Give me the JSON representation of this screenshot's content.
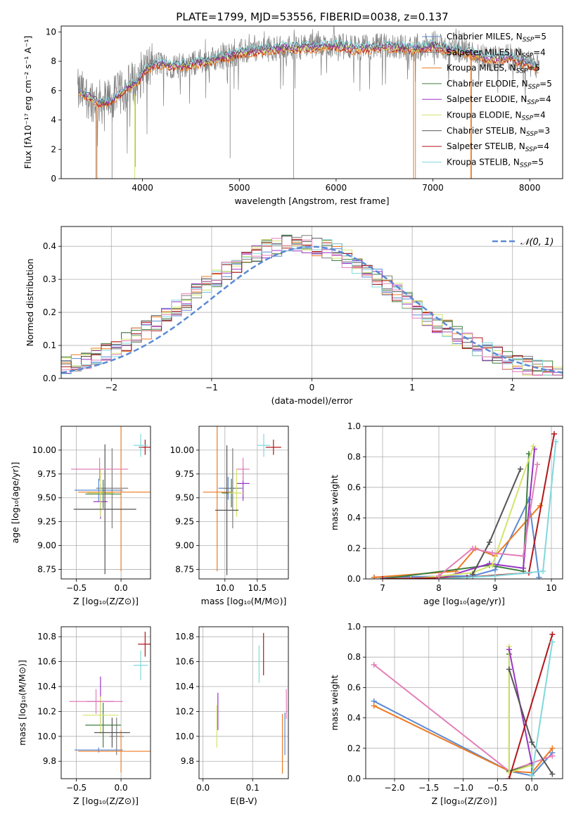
{
  "figure": {
    "title": "PLATE=1799, MJD=53556, FIBERID=0038, z=0.137"
  },
  "colors": {
    "Chabrier MILES": "#5b8ad3",
    "Salpeter MILES": "#7f7f7f",
    "Kroupa MILES": "#ee7b22",
    "Chabrier ELODIE": "#3f7f3f",
    "Salpeter ELODIE": "#9a35c4",
    "Kroupa ELODIE": "#d4e36b",
    "Chabrier STELIB": "#555555",
    "Salpeter STELIB": "#b3161c",
    "Kroupa STELIB": "#80d8dc",
    "Chabrier MILES (ages)": "#e37fb8",
    "data": "#808080"
  },
  "chart_data": [
    {
      "id": "spectrum",
      "type": "line",
      "xlabel": "wavelength [Angstrom, rest frame]",
      "ylabel": "Flux [fλ10⁻¹⁷ erg cm⁻² s⁻¹ A⁻¹]",
      "xlim": [
        3160,
        8340
      ],
      "ylim": [
        0,
        10.4
      ],
      "xticks": [
        4000,
        5000,
        6000,
        7000,
        8000
      ],
      "yticks": [
        0,
        2,
        4,
        6,
        8,
        10
      ],
      "legend_position": "right",
      "legend": [
        {
          "label": "Chabrier MILES, N",
          "sub": "SSP",
          "tail": "=5",
          "color": "#5b8ad3"
        },
        {
          "label": "Salpeter MILES, N",
          "sub": "SSP",
          "tail": "=4",
          "color": "#7f7f7f"
        },
        {
          "label": "Kroupa MILES, N",
          "sub": "SSP",
          "tail": "=5",
          "color": "#ee7b22"
        },
        {
          "label": "Chabrier ELODIE, N",
          "sub": "SSP",
          "tail": "=5",
          "color": "#3f7f3f"
        },
        {
          "label": "Salpeter ELODIE, N",
          "sub": "SSP",
          "tail": "=4",
          "color": "#9a35c4"
        },
        {
          "label": "Kroupa ELODIE, N",
          "sub": "SSP",
          "tail": "=4",
          "color": "#d4e36b"
        },
        {
          "label": "Chabrier STELIB, N",
          "sub": "SSP",
          "tail": "=3",
          "color": "#555555"
        },
        {
          "label": "Salpeter STELIB, N",
          "sub": "SSP",
          "tail": "=4",
          "color": "#b3161c"
        },
        {
          "label": "Kroupa STELIB, N",
          "sub": "SSP",
          "tail": "=5",
          "color": "#80d8dc"
        }
      ],
      "continuum": {
        "x": [
          3350,
          3450,
          3550,
          3650,
          3700,
          3800,
          3900,
          3950,
          4000,
          4100,
          4200,
          4300,
          4500,
          4700,
          4900,
          5000,
          5200,
          5400,
          5600,
          5800,
          6000,
          6200,
          6400,
          6600,
          6800,
          7000,
          7200,
          7400,
          7600,
          7800,
          8000,
          8100
        ],
        "y": [
          5.9,
          5.6,
          5.2,
          5.3,
          5.4,
          6.0,
          6.5,
          6.6,
          7.3,
          7.7,
          7.9,
          7.7,
          7.8,
          8.1,
          8.4,
          8.6,
          8.8,
          8.9,
          9.0,
          9.05,
          9.1,
          8.9,
          9.0,
          9.05,
          8.85,
          9.1,
          8.8,
          8.6,
          8.2,
          8.3,
          7.8,
          7.6
        ]
      },
      "absorption_lines": [
        {
          "x": 3530,
          "y": 0.0
        },
        {
          "x": 3685,
          "y": 0.0
        },
        {
          "x": 3925,
          "y": 0.8
        },
        {
          "x": 4905,
          "y": 1.4
        },
        {
          "x": 5560,
          "y": 0.0
        },
        {
          "x": 6820,
          "y": 0.0
        },
        {
          "x": 7400,
          "y": 0.0
        }
      ]
    },
    {
      "id": "residuals",
      "type": "histogram",
      "xlabel": "(data-model)/error",
      "ylabel": "Normed distribution",
      "xlim": [
        -2.5,
        2.5
      ],
      "ylim": [
        0,
        0.46
      ],
      "xticks": [
        -2,
        -1,
        0,
        1,
        2
      ],
      "yticks": [
        0.0,
        0.1,
        0.2,
        0.3,
        0.4
      ],
      "legend_position": "top-right",
      "legend": [
        {
          "label": "𝒩(0, 1)",
          "color": "#5b8ad3",
          "style": "dashed"
        }
      ],
      "bin_width": 0.1,
      "reference_curve": "normal pdf, mean 0, sigma 1"
    },
    {
      "id": "age_vs_Z",
      "type": "errorbar",
      "xlabel": "Z [log₁₀(Z/Z⊙)]",
      "ylabel": "age  [log₁₀(age/yr)]",
      "xlim": [
        -0.67,
        0.33
      ],
      "ylim": [
        8.65,
        10.25
      ],
      "xticks": [
        -0.5,
        0.0
      ],
      "yticks": [
        8.75,
        9.0,
        9.25,
        9.5,
        9.75,
        10.0
      ],
      "points": [
        {
          "model": "Chabrier MILES",
          "x": -0.25,
          "xerr": 0.27,
          "y": 9.58,
          "yerr": 0.12
        },
        {
          "model": "Salpeter MILES",
          "x": -0.1,
          "xerr": 0.18,
          "y": 9.6,
          "yerr": 0.42
        },
        {
          "model": "Kroupa MILES",
          "x": 0.0,
          "xerr": 0.48,
          "y": 9.56,
          "yerr": 0.83
        },
        {
          "model": "Chabrier ELODIE",
          "x": -0.2,
          "xerr": 0.2,
          "y": 9.54,
          "yerr": 0.15
        },
        {
          "model": "Salpeter ELODIE",
          "x": -0.23,
          "xerr": 0.08,
          "y": 9.46,
          "yerr": 0.18
        },
        {
          "model": "Kroupa ELODIE",
          "x": -0.23,
          "xerr": 0.15,
          "y": 9.55,
          "yerr": 0.25
        },
        {
          "model": "Chabrier STELIB",
          "x": -0.18,
          "xerr": 0.35,
          "y": 9.38,
          "yerr": 0.68
        },
        {
          "model": "Salpeter STELIB",
          "x": 0.27,
          "xerr": 0.07,
          "y": 10.03,
          "yerr": 0.08
        },
        {
          "model": "Kroupa STELIB",
          "x": 0.22,
          "xerr": 0.08,
          "y": 10.05,
          "yerr": 0.12
        },
        {
          "model": "Chabrier MILES (ages)",
          "x": -0.24,
          "xerr": 0.32,
          "y": 9.8,
          "yerr": 0.12
        }
      ]
    },
    {
      "id": "age_vs_mass",
      "type": "errorbar",
      "xlabel": "mass [log₁₀(M/M⊙)]",
      "ylabel": "",
      "xlim": [
        9.6,
        10.98
      ],
      "ylim": [
        8.65,
        10.25
      ],
      "xticks": [
        10.0,
        10.5
      ],
      "yticks": [
        8.75,
        9.0,
        9.25,
        9.5,
        9.75,
        10.0
      ],
      "points": [
        {
          "model": "Chabrier MILES",
          "x": 10.05,
          "xerr": 0.15,
          "y": 9.6,
          "yerr": 0.12
        },
        {
          "model": "Salpeter MILES",
          "x": 10.12,
          "xerr": 0.15,
          "y": 9.6,
          "yerr": 0.42
        },
        {
          "model": "Kroupa MILES",
          "x": 9.88,
          "xerr": 0.22,
          "y": 9.56,
          "yerr": 0.83
        },
        {
          "model": "Chabrier ELODIE",
          "x": 10.1,
          "xerr": 0.15,
          "y": 9.55,
          "yerr": 0.15
        },
        {
          "model": "Salpeter ELODIE",
          "x": 10.28,
          "xerr": 0.1,
          "y": 9.65,
          "yerr": 0.18
        },
        {
          "model": "Kroupa ELODIE",
          "x": 10.18,
          "xerr": 0.12,
          "y": 9.55,
          "yerr": 0.25
        },
        {
          "model": "Chabrier STELIB",
          "x": 10.03,
          "xerr": 0.18,
          "y": 9.37,
          "yerr": 0.68
        },
        {
          "model": "Salpeter STELIB",
          "x": 10.75,
          "xerr": 0.12,
          "y": 10.03,
          "yerr": 0.08
        },
        {
          "model": "Kroupa STELIB",
          "x": 10.6,
          "xerr": 0.1,
          "y": 10.05,
          "yerr": 0.12
        },
        {
          "model": "Chabrier MILES (ages)",
          "x": 10.28,
          "xerr": 0.1,
          "y": 9.8,
          "yerr": 0.12
        }
      ]
    },
    {
      "id": "weight_vs_age",
      "type": "line",
      "xlabel": "age  [log₁₀(age/yr)]",
      "ylabel": "mass weight",
      "xlim": [
        6.7,
        10.2
      ],
      "ylim": [
        0.0,
        1.0
      ],
      "xticks": [
        7,
        8,
        9,
        10
      ],
      "yticks": [
        0.0,
        0.2,
        0.4,
        0.6,
        0.8,
        1.0
      ],
      "series": [
        {
          "model": "Chabrier MILES",
          "x": [
            6.85,
            8.6,
            9.0,
            9.6,
            9.78
          ],
          "y": [
            0.01,
            0.02,
            0.06,
            0.52,
            0.01
          ]
        },
        {
          "model": "Kroupa MILES",
          "x": [
            6.85,
            8.3,
            8.65,
            9.0,
            9.8
          ],
          "y": [
            0.01,
            0.05,
            0.2,
            0.15,
            0.48
          ]
        },
        {
          "model": "Chabrier ELODIE",
          "x": [
            7.0,
            8.9,
            9.5,
            9.6
          ],
          "y": [
            0.0,
            0.09,
            0.05,
            0.82
          ]
        },
        {
          "model": "Salpeter ELODIE",
          "x": [
            8.0,
            8.9,
            9.5,
            9.7
          ],
          "y": [
            0.0,
            0.1,
            0.07,
            0.85
          ]
        },
        {
          "model": "Kroupa ELODIE",
          "x": [
            7.5,
            8.6,
            8.95,
            9.68
          ],
          "y": [
            0.0,
            0.04,
            0.09,
            0.87
          ]
        },
        {
          "model": "Chabrier STELIB",
          "x": [
            8.6,
            8.9,
            9.45
          ],
          "y": [
            0.03,
            0.24,
            0.72
          ]
        },
        {
          "model": "Salpeter STELIB",
          "x": [
            7.0,
            8.5,
            9.6,
            10.05
          ],
          "y": [
            0.0,
            0.01,
            0.04,
            0.95
          ]
        },
        {
          "model": "Kroupa STELIB",
          "x": [
            8.0,
            9.0,
            9.85,
            10.08
          ],
          "y": [
            0.0,
            0.02,
            0.05,
            0.9
          ]
        },
        {
          "model": "Chabrier MILES (ages)",
          "x": [
            8.0,
            8.6,
            8.95,
            9.5,
            9.75
          ],
          "y": [
            0.02,
            0.2,
            0.17,
            0.15,
            0.75
          ]
        }
      ]
    },
    {
      "id": "mass_vs_Z",
      "type": "errorbar",
      "xlabel": "Z [log₁₀(Z/Z⊙)]",
      "ylabel": "mass [log₁₀(M/M⊙)]",
      "xlim": [
        -0.67,
        0.33
      ],
      "ylim": [
        9.66,
        10.88
      ],
      "xticks": [
        -0.5,
        0.0
      ],
      "yticks": [
        9.8,
        10.0,
        10.2,
        10.4,
        10.6,
        10.8
      ],
      "points": [
        {
          "model": "Chabrier MILES",
          "x": -0.25,
          "xerr": 0.27,
          "y": 9.89,
          "yerr": 0.02
        },
        {
          "model": "Salpeter MILES",
          "x": -0.05,
          "xerr": 0.08,
          "y": 10.0,
          "yerr": 0.15
        },
        {
          "model": "Kroupa MILES",
          "x": 0.0,
          "xerr": 0.48,
          "y": 9.88,
          "yerr": 0.17
        },
        {
          "model": "Chabrier ELODIE",
          "x": -0.2,
          "xerr": 0.2,
          "y": 10.09,
          "yerr": 0.18
        },
        {
          "model": "Salpeter ELODIE",
          "x": -0.23,
          "xerr": 0.15,
          "y": 10.28,
          "yerr": 0.2
        },
        {
          "model": "Kroupa ELODIE",
          "x": -0.23,
          "xerr": 0.2,
          "y": 10.17,
          "yerr": 0.15
        },
        {
          "model": "Chabrier STELIB",
          "x": -0.1,
          "xerr": 0.2,
          "y": 10.03,
          "yerr": 0.12
        },
        {
          "model": "Salpeter STELIB",
          "x": 0.27,
          "xerr": 0.08,
          "y": 10.74,
          "yerr": 0.1
        },
        {
          "model": "Kroupa STELIB",
          "x": 0.22,
          "xerr": 0.08,
          "y": 10.57,
          "yerr": 0.12
        },
        {
          "model": "Chabrier MILES (ages)",
          "x": -0.28,
          "xerr": 0.3,
          "y": 10.28,
          "yerr": 0.1
        }
      ]
    },
    {
      "id": "mass_vs_ebv",
      "type": "errorbar",
      "xlabel": "E(B-V)",
      "ylabel": "",
      "xlim": [
        -0.008,
        0.172
      ],
      "ylim": [
        9.66,
        10.88
      ],
      "xticks": [
        0.0,
        0.1
      ],
      "yticks": [
        9.8,
        10.0,
        10.2,
        10.4,
        10.6,
        10.8
      ],
      "points": [
        {
          "model": "Kroupa ELODIE",
          "x": 0.028,
          "y": 10.08,
          "yerr": 0.17
        },
        {
          "model": "Salpeter ELODIE",
          "x": 0.03,
          "y": 10.2,
          "yerr": 0.15
        },
        {
          "model": "Kroupa STELIB",
          "x": 0.113,
          "y": 10.58,
          "yerr": 0.15
        },
        {
          "model": "Salpeter STELIB",
          "x": 0.122,
          "y": 10.66,
          "yerr": 0.17
        },
        {
          "model": "Kroupa MILES",
          "x": 0.16,
          "y": 9.94,
          "yerr": 0.24
        },
        {
          "model": "Chabrier MILES",
          "x": 0.165,
          "y": 10.02,
          "yerr": 0.17
        },
        {
          "model": "Chabrier MILES (ages)",
          "x": 0.168,
          "y": 10.26,
          "yerr": 0.12
        }
      ]
    },
    {
      "id": "weight_vs_Z",
      "type": "line",
      "xlabel": "Z [log₁₀(Z/Z⊙)]",
      "ylabel": "mass weight",
      "xlim": [
        -2.42,
        0.45
      ],
      "ylim": [
        0.0,
        1.0
      ],
      "xticks": [
        -2.0,
        -1.5,
        -1.0,
        -0.5,
        0.0
      ],
      "yticks": [
        0.0,
        0.2,
        0.4,
        0.6,
        0.8,
        1.0
      ],
      "series": [
        {
          "model": "Chabrier MILES",
          "x": [
            -2.3,
            -0.33,
            0.0,
            0.3
          ],
          "y": [
            0.51,
            0.05,
            0.02,
            0.17
          ]
        },
        {
          "model": "Kroupa MILES",
          "x": [
            -2.3,
            -0.33,
            0.0,
            0.3
          ],
          "y": [
            0.48,
            0.05,
            0.04,
            0.2
          ]
        },
        {
          "model": "Chabrier MILES (ages)",
          "x": [
            -2.3,
            -0.33,
            0.3
          ],
          "y": [
            0.75,
            0.05,
            0.15
          ]
        },
        {
          "model": "Chabrier ELODIE",
          "x": [
            -0.33,
            -0.33,
            0.0,
            0.0
          ],
          "y": [
            0.82,
            0.05,
            0.09,
            0.02
          ]
        },
        {
          "model": "Kroupa ELODIE",
          "x": [
            -0.33,
            -0.33,
            0.0
          ],
          "y": [
            0.87,
            0.04,
            0.09
          ]
        },
        {
          "model": "Salpeter ELODIE",
          "x": [
            -0.33,
            0.0
          ],
          "y": [
            0.85,
            0.1
          ]
        },
        {
          "model": "Chabrier STELIB",
          "x": [
            -0.33,
            0.0,
            0.3
          ],
          "y": [
            0.72,
            0.24,
            0.03
          ]
        },
        {
          "model": "Salpeter STELIB",
          "x": [
            -0.33,
            0.3
          ],
          "y": [
            0.0,
            0.95
          ]
        },
        {
          "model": "Kroupa STELIB",
          "x": [
            0.0,
            0.3
          ],
          "y": [
            0.02,
            0.9
          ]
        }
      ]
    }
  ]
}
